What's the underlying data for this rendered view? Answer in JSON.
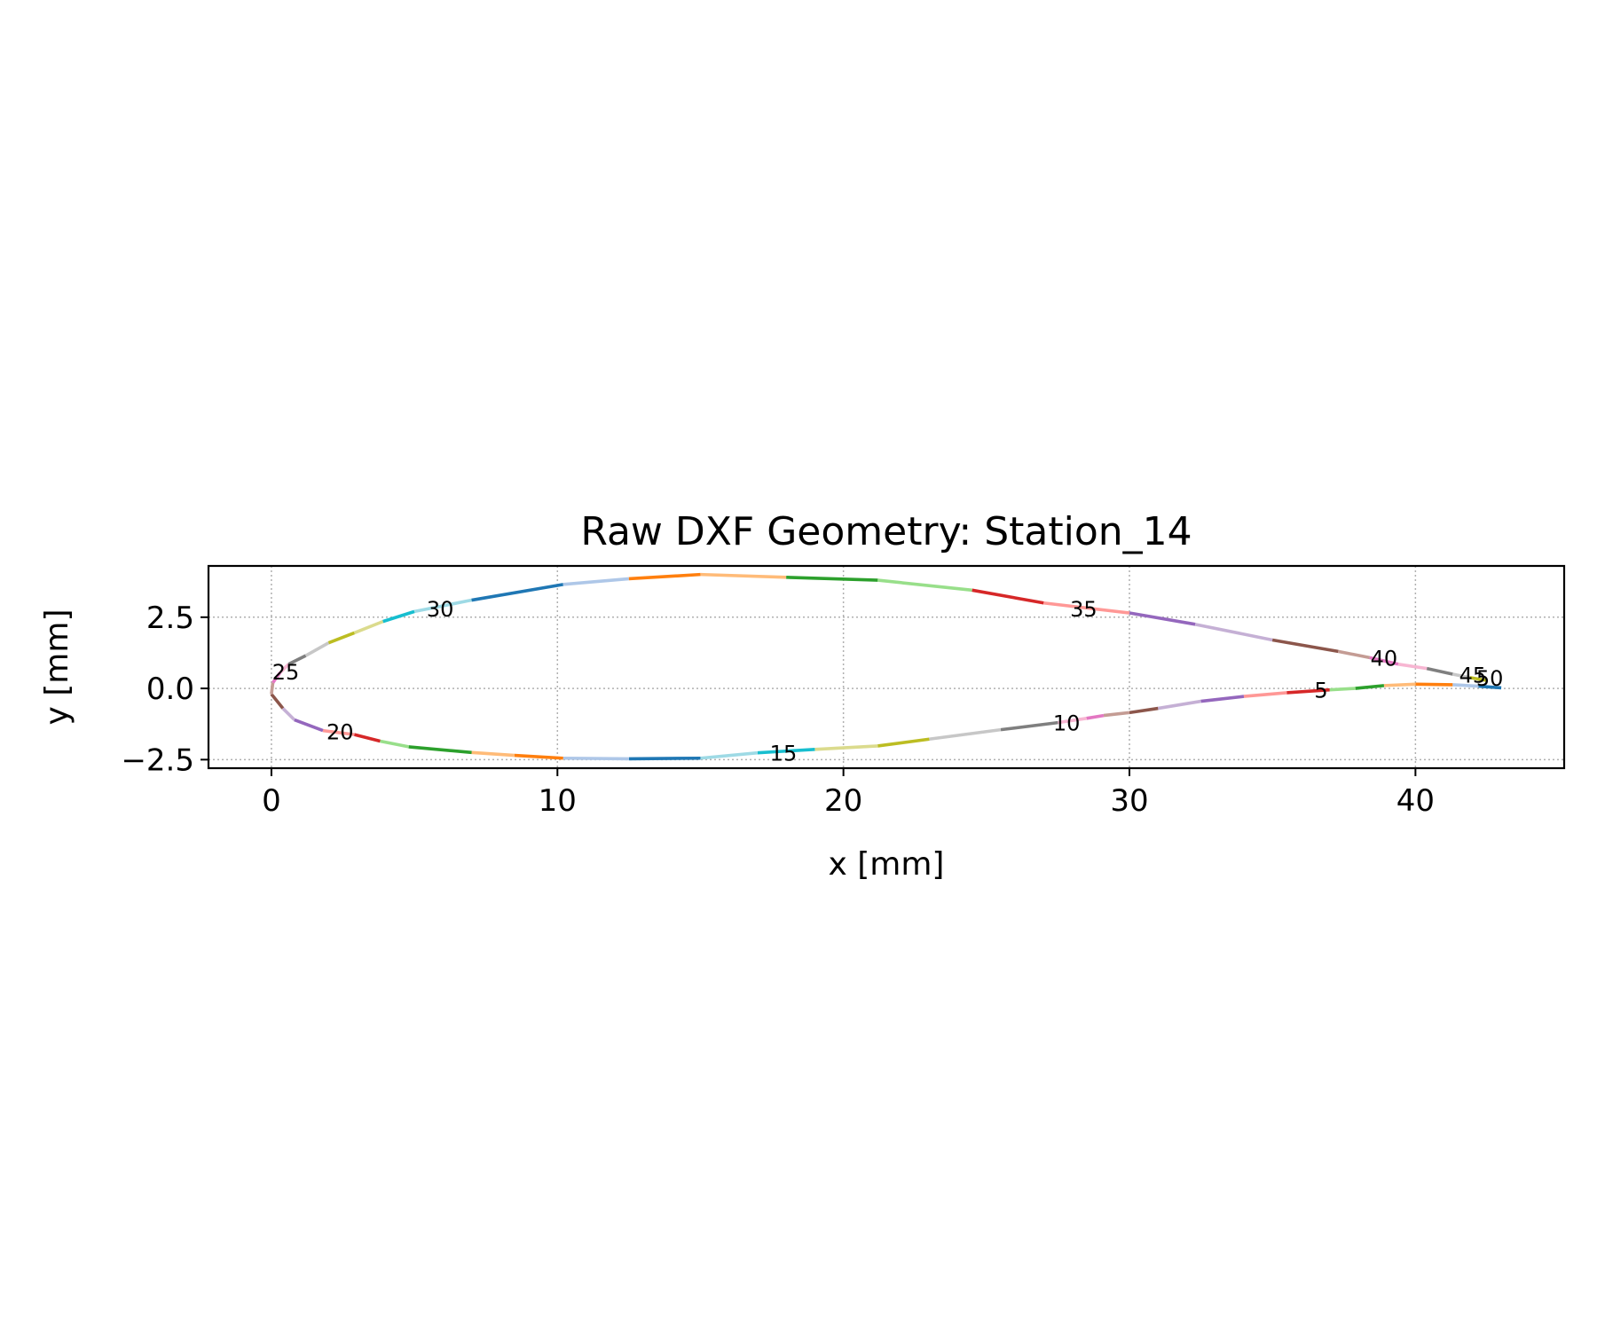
{
  "chart_data": {
    "type": "line",
    "title": "Raw DXF Geometry: Station_14",
    "xlabel": "x [mm]",
    "ylabel": "y [mm]",
    "xlim": [
      -2.2,
      45.2
    ],
    "ylim": [
      -2.8,
      4.3
    ],
    "xticks": [
      {
        "value": 0,
        "label": "0"
      },
      {
        "value": 10,
        "label": "10"
      },
      {
        "value": 20,
        "label": "20"
      },
      {
        "value": 30,
        "label": "30"
      },
      {
        "value": 40,
        "label": "40"
      }
    ],
    "yticks": [
      {
        "value": 2.5,
        "label": "2.5"
      },
      {
        "value": 0,
        "label": "0.0"
      },
      {
        "value": -2.5,
        "label": "−2.5"
      }
    ],
    "grid": true,
    "palette": [
      "#1f77b4",
      "#aec7e8",
      "#ff7f0e",
      "#ffbb78",
      "#2ca02c",
      "#98df8a",
      "#d62728",
      "#ff9896",
      "#9467bd",
      "#c5b0d5",
      "#8c564b",
      "#c49c94",
      "#e377c2",
      "#f7b6d2",
      "#7f7f7f",
      "#c7c7c7",
      "#bcbd22",
      "#dbdb8d",
      "#17becf",
      "#9edae5"
    ],
    "points": [
      [
        43.0,
        0.02
      ],
      [
        42.2,
        0.08
      ],
      [
        41.3,
        0.13
      ],
      [
        40.0,
        0.15
      ],
      [
        38.9,
        0.1
      ],
      [
        37.9,
        0.0
      ],
      [
        37.0,
        -0.05
      ],
      [
        35.5,
        -0.15
      ],
      [
        34.0,
        -0.28
      ],
      [
        32.5,
        -0.45
      ],
      [
        31.0,
        -0.7
      ],
      [
        30.0,
        -0.85
      ],
      [
        29.1,
        -0.95
      ],
      [
        28.5,
        -1.05
      ],
      [
        27.5,
        -1.2
      ],
      [
        25.5,
        -1.45
      ],
      [
        23.0,
        -1.78
      ],
      [
        21.2,
        -2.02
      ],
      [
        19.0,
        -2.14
      ],
      [
        17.0,
        -2.26
      ],
      [
        15.0,
        -2.45
      ],
      [
        12.5,
        -2.47
      ],
      [
        10.2,
        -2.45
      ],
      [
        8.5,
        -2.35
      ],
      [
        7.0,
        -2.25
      ],
      [
        4.8,
        -2.05
      ],
      [
        3.8,
        -1.85
      ],
      [
        2.9,
        -1.62
      ],
      [
        1.8,
        -1.48
      ],
      [
        0.8,
        -1.1
      ],
      [
        0.4,
        -0.7
      ],
      [
        0.0,
        -0.2
      ],
      [
        0.05,
        0.2
      ],
      [
        0.3,
        0.55
      ],
      [
        0.6,
        0.85
      ],
      [
        1.2,
        1.15
      ],
      [
        2.0,
        1.6
      ],
      [
        2.9,
        1.95
      ],
      [
        3.9,
        2.35
      ],
      [
        5.0,
        2.7
      ],
      [
        7.0,
        3.1
      ],
      [
        10.2,
        3.65
      ],
      [
        12.5,
        3.85
      ],
      [
        15.0,
        4.0
      ],
      [
        18.0,
        3.9
      ],
      [
        21.2,
        3.8
      ],
      [
        24.5,
        3.45
      ],
      [
        27.0,
        3.0
      ],
      [
        30.0,
        2.65
      ],
      [
        32.3,
        2.25
      ],
      [
        35.0,
        1.7
      ],
      [
        37.3,
        1.3
      ],
      [
        38.4,
        1.08
      ],
      [
        39.4,
        0.85
      ],
      [
        40.4,
        0.7
      ],
      [
        41.3,
        0.5
      ],
      [
        41.9,
        0.38
      ],
      [
        42.5,
        0.28
      ]
    ],
    "labels": [
      {
        "text": "5",
        "x": 36.7,
        "y": -0.05
      },
      {
        "text": "10",
        "x": 27.8,
        "y": -1.2
      },
      {
        "text": "15",
        "x": 17.9,
        "y": -2.25
      },
      {
        "text": "20",
        "x": 2.4,
        "y": -1.5
      },
      {
        "text": "25",
        "x": 0.5,
        "y": 0.6
      },
      {
        "text": "30",
        "x": 5.9,
        "y": 2.8
      },
      {
        "text": "35",
        "x": 28.4,
        "y": 2.8
      },
      {
        "text": "40",
        "x": 38.9,
        "y": 1.08
      },
      {
        "text": "45",
        "x": 42.0,
        "y": 0.48
      },
      {
        "text": "50",
        "x": 42.6,
        "y": 0.38
      }
    ]
  }
}
